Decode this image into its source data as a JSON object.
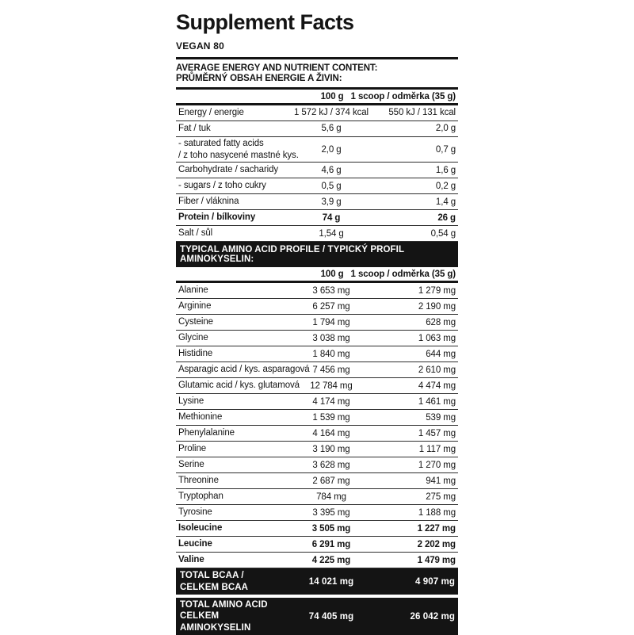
{
  "label": {
    "title": "Supplement Facts",
    "subtitle": "VEGAN 80",
    "colors": {
      "ink": "#141414",
      "bar_background": "#141414",
      "bar_text": "#ffffff",
      "background": "#ffffff"
    },
    "nutrition": {
      "heading_en": "AVERAGE ENERGY AND NUTRIENT CONTENT:",
      "heading_cs": "PRŮMĚRNÝ OBSAH ENERGIE A ŽIVIN:",
      "columns": {
        "per100": "100 g",
        "perScoop": "1 scoop / odměrka (35 g)"
      },
      "rows": [
        {
          "label": "Energy / energie",
          "per100": "1 572 kJ / 374 kcal",
          "perScoop": "550 kJ / 131 kcal"
        },
        {
          "label": "Fat / tuk",
          "per100": "5,6 g",
          "perScoop": "2,0 g"
        },
        {
          "label": "- saturated fatty acids",
          "label2": "/ z toho nasycené mastné kys.",
          "per100": "2,0 g",
          "perScoop": "0,7 g"
        },
        {
          "label": "Carbohydrate / sacharidy",
          "per100": "4,6 g",
          "perScoop": "1,6 g"
        },
        {
          "label": "- sugars / z toho cukry",
          "per100": "0,5 g",
          "perScoop": "0,2 g"
        },
        {
          "label": "Fiber / vláknina",
          "per100": "3,9 g",
          "perScoop": "1,4 g"
        },
        {
          "label": "Protein / bílkoviny",
          "per100": "74 g",
          "perScoop": "26 g",
          "bold": true
        },
        {
          "label": "Salt / sůl",
          "per100": "1,54 g",
          "perScoop": "0,54 g"
        }
      ]
    },
    "amino": {
      "heading": "TYPICAL AMINO ACID PROFILE / TYPICKÝ PROFIL AMINOKYSELIN:",
      "columns": {
        "per100": "100 g",
        "perScoop": "1 scoop / odměrka (35 g)"
      },
      "rows": [
        {
          "label": "Alanine",
          "per100": "3 653 mg",
          "perScoop": "1 279 mg"
        },
        {
          "label": "Arginine",
          "per100": "6 257 mg",
          "perScoop": "2 190 mg"
        },
        {
          "label": "Cysteine",
          "per100": "1 794 mg",
          "perScoop": "628 mg"
        },
        {
          "label": "Glycine",
          "per100": "3 038 mg",
          "perScoop": "1 063 mg"
        },
        {
          "label": "Histidine",
          "per100": "1 840 mg",
          "perScoop": "644 mg"
        },
        {
          "label": "Asparagic acid / kys. asparagová",
          "per100": "7 456 mg",
          "perScoop": "2 610 mg"
        },
        {
          "label": "Glutamic acid / kys. glutamová",
          "per100": "12 784 mg",
          "perScoop": "4 474 mg"
        },
        {
          "label": "Lysine",
          "per100": "4 174 mg",
          "perScoop": "1 461 mg"
        },
        {
          "label": "Methionine",
          "per100": "1 539 mg",
          "perScoop": "539 mg"
        },
        {
          "label": "Phenylalanine",
          "per100": "4 164 mg",
          "perScoop": "1 457 mg"
        },
        {
          "label": "Proline",
          "per100": "3 190 mg",
          "perScoop": "1 117 mg"
        },
        {
          "label": "Serine",
          "per100": "3 628 mg",
          "perScoop": "1 270 mg"
        },
        {
          "label": "Threonine",
          "per100": "2 687 mg",
          "perScoop": "941 mg"
        },
        {
          "label": "Tryptophan",
          "per100": "784 mg",
          "perScoop": "275 mg"
        },
        {
          "label": "Tyrosine",
          "per100": "3 395 mg",
          "perScoop": "1 188 mg"
        },
        {
          "label": "Isoleucine",
          "per100": "3 505 mg",
          "perScoop": "1 227 mg",
          "bold": true
        },
        {
          "label": "Leucine",
          "per100": "6 291 mg",
          "perScoop": "2 202 mg",
          "bold": true
        },
        {
          "label": "Valine",
          "per100": "4 225 mg",
          "perScoop": "1 479 mg",
          "bold": true
        }
      ],
      "total_bcaa": {
        "label": "TOTAL BCAA / CELKEM BCAA",
        "per100": "14 021 mg",
        "perScoop": "4 907 mg"
      },
      "total_amino": {
        "label": "TOTAL AMINO ACID",
        "label2": "CELKEM AMINOKYSELIN",
        "per100": "74 405 mg",
        "perScoop": "26 042 mg"
      }
    }
  }
}
